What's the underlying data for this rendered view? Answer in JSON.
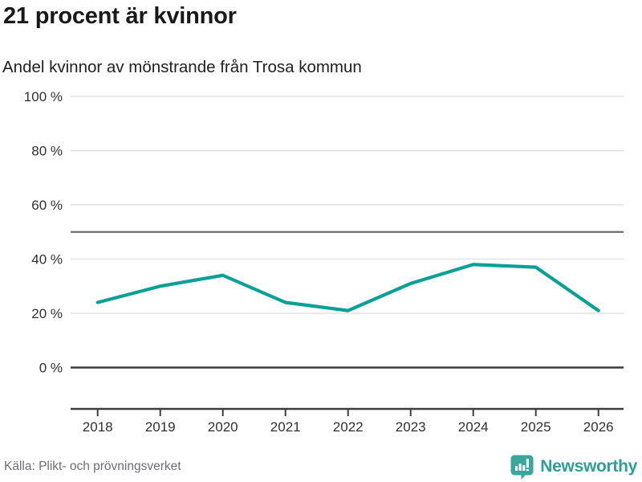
{
  "header": {
    "title": "21 procent är kvinnor",
    "subtitle": "Andel kvinnor av mönstrande från Trosa kommun"
  },
  "footer": {
    "source": "Källa: Plikt- och prövningsverket",
    "brand": "Newsworthy"
  },
  "colors": {
    "line": "#0aa096",
    "brand_teal": "#3aa79d",
    "wordmark_teal": "#2f9e98",
    "grid_light": "#e2e2e2",
    "grid_dark": "#3d3d3d",
    "reference_line": "#6b6b6b",
    "axis_text": "#303030",
    "source_text": "#6e6e74"
  },
  "chart_data": {
    "type": "line",
    "title": "21 procent är kvinnor",
    "subtitle": "Andel kvinnor av mönstrande från Trosa kommun",
    "categories": [
      "2018",
      "2019",
      "2020",
      "2021",
      "2022",
      "2023",
      "2024",
      "2025",
      "2026"
    ],
    "series": [
      {
        "name": "Andel kvinnor av mönstrande",
        "values": [
          24,
          30,
          34,
          24,
          21,
          31,
          38,
          37,
          21
        ]
      }
    ],
    "unit": "%",
    "ylim": [
      0,
      100
    ],
    "yticks": [
      0,
      20,
      40,
      60,
      80,
      100
    ],
    "ytick_labels": [
      "0 %",
      "20 %",
      "40 %",
      "60 %",
      "80 %",
      "100 %"
    ],
    "reference_line": 50,
    "grid": true,
    "legend": "none",
    "source": "Källa: Plikt- och prövningsverket"
  }
}
